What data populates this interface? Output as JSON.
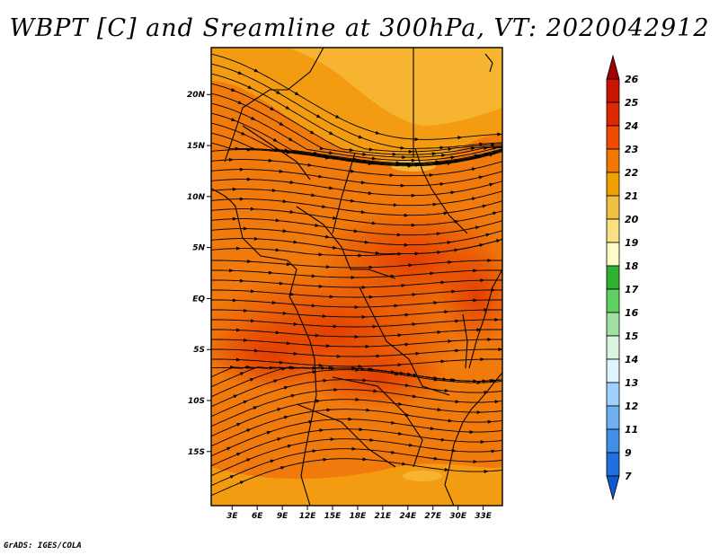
{
  "title": "WBPT [C] and Sreamline at 300hPa, VT: 2020042912",
  "footer": "GrADS: IGES/COLA",
  "map": {
    "variable": "Wet-bulb potential temperature (WBPT)",
    "level": "300hPa",
    "valid_time": "2020042912",
    "lat_ticks": [
      {
        "label": "20N",
        "value": 20
      },
      {
        "label": "15N",
        "value": 15
      },
      {
        "label": "10N",
        "value": 10
      },
      {
        "label": "5N",
        "value": 5
      },
      {
        "label": "EQ",
        "value": 0
      },
      {
        "label": "5S",
        "value": -5
      },
      {
        "label": "10S",
        "value": -10
      },
      {
        "label": "15S",
        "value": -15
      }
    ],
    "lon_ticks": [
      {
        "label": "3E",
        "value": 3
      },
      {
        "label": "6E",
        "value": 6
      },
      {
        "label": "9E",
        "value": 9
      },
      {
        "label": "12E",
        "value": 12
      },
      {
        "label": "15E",
        "value": 15
      },
      {
        "label": "18E",
        "value": 18
      },
      {
        "label": "21E",
        "value": 21
      },
      {
        "label": "24E",
        "value": 24
      },
      {
        "label": "27E",
        "value": 27
      },
      {
        "label": "30E",
        "value": 30
      },
      {
        "label": "33E",
        "value": 33
      }
    ],
    "lon_range": [
      0.5,
      35.3
    ],
    "lat_range": [
      -20.3,
      24.6
    ]
  },
  "colorbar": {
    "labels": [
      "26",
      "25",
      "24",
      "23",
      "22",
      "21",
      "20",
      "19",
      "18",
      "17",
      "16",
      "15",
      "14",
      "13",
      "12",
      "11",
      "9",
      "7"
    ],
    "colors": [
      "#a00000",
      "#c81400",
      "#e02800",
      "#f04b00",
      "#f07800",
      "#f0a000",
      "#f0c040",
      "#fae080",
      "#fffac8",
      "#30b030",
      "#60d060",
      "#a0e0a0",
      "#d8f5e0",
      "#e0f4ff",
      "#a0d0ff",
      "#70b0f0",
      "#4090e8",
      "#2070e0",
      "#1058d0"
    ]
  },
  "colors": {
    "frame": "#000000",
    "streamline": "#000000"
  }
}
